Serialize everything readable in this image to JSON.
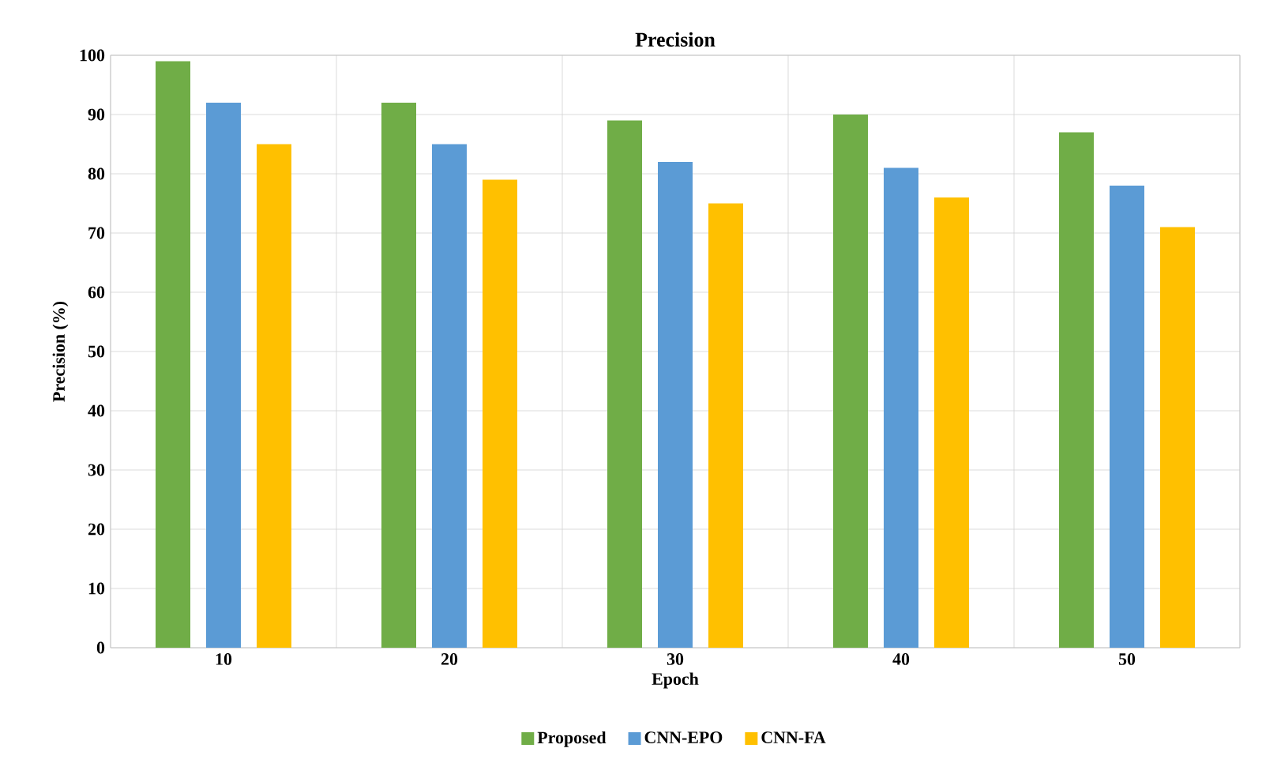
{
  "chart_data": {
    "type": "bar",
    "title": "Precision",
    "xlabel": "Epoch",
    "ylabel": "Precision (%)",
    "categories": [
      "10",
      "20",
      "30",
      "40",
      "50"
    ],
    "series": [
      {
        "name": "Proposed",
        "color": "#70ad47",
        "values": [
          99,
          92,
          89,
          90,
          87
        ]
      },
      {
        "name": "CNN-EPO",
        "color": "#5b9bd5",
        "values": [
          92,
          85,
          82,
          81,
          78
        ]
      },
      {
        "name": "CNN-FA",
        "color": "#ffc000",
        "values": [
          85,
          79,
          75,
          76,
          71
        ]
      }
    ],
    "ylim": [
      0,
      100
    ],
    "yticks": [
      0,
      10,
      20,
      30,
      40,
      50,
      60,
      70,
      80,
      90,
      100
    ],
    "grid": true,
    "legend": "bottom"
  }
}
